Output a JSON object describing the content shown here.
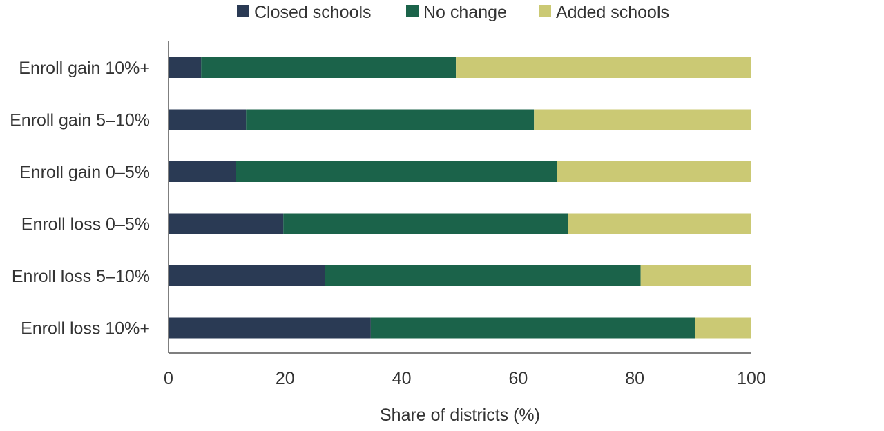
{
  "chart_data": {
    "type": "bar",
    "orientation": "horizontal",
    "stacked": true,
    "categories": [
      "Enroll gain 10%+",
      "Enroll gain 5–10%",
      "Enroll gain 0–5%",
      "Enroll loss 0–5%",
      "Enroll loss 5–10%",
      "Enroll loss 10%+"
    ],
    "series": [
      {
        "name": "Closed schools",
        "color": "#2a3a54",
        "values": [
          5.6,
          13.3,
          11.5,
          19.7,
          26.8,
          34.7
        ]
      },
      {
        "name": "No change",
        "color": "#1b634a",
        "values": [
          43.7,
          49.4,
          55.2,
          48.9,
          54.2,
          55.6
        ]
      },
      {
        "name": "Added schools",
        "color": "#cbc974",
        "values": [
          50.7,
          37.3,
          33.3,
          31.4,
          19.0,
          9.7
        ]
      }
    ],
    "xlabel": "Share of districts (%)",
    "ylabel": "",
    "xlim": [
      0,
      100
    ],
    "xticks": [
      "0",
      "20",
      "40",
      "60",
      "80",
      "100"
    ],
    "grid": false,
    "legend": "top"
  }
}
